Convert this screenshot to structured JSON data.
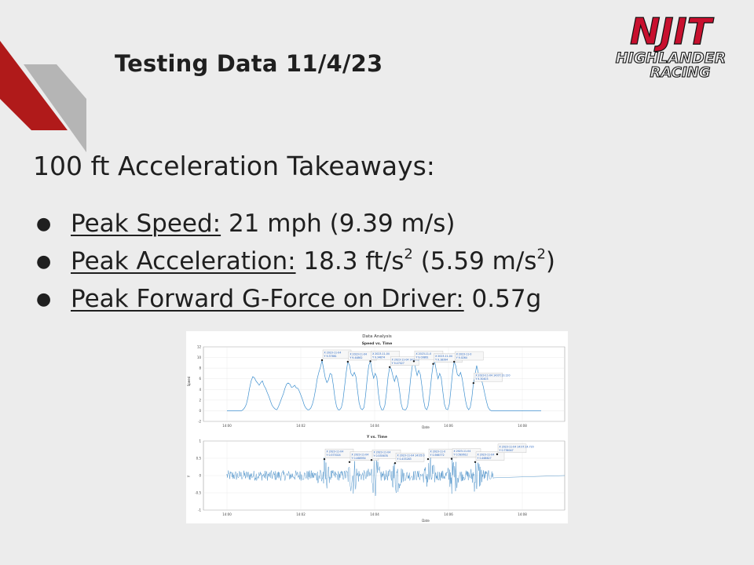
{
  "slide": {
    "title": "Testing Data 11/4/23",
    "heading": "100 ft Acceleration Takeaways:",
    "bullets": [
      {
        "key": "Peak Speed:",
        "value": " 21 mph (9.39 m/s)"
      },
      {
        "key": "Peak Acceleration:",
        "value_pre": " 18.3 ft/s",
        "sup1": "2",
        "value_mid": " (5.59 m/s",
        "sup2": "2",
        "value_post": ")"
      },
      {
        "key": "Peak Forward G-Force on Driver:",
        "value": " 0.57g"
      }
    ]
  },
  "logo": {
    "line1": "NJIT",
    "line2": "HIGHLANDER",
    "line3": "RACING",
    "color": "#c8102e"
  },
  "colors": {
    "background": "#ececec",
    "accent_red": "#b01a1a",
    "accent_grey": "#b5b5b5",
    "plot_line": "#3f90cf"
  },
  "chart_data": [
    {
      "type": "line",
      "suptitle": "Data Analysis",
      "title": "Speed vs. Time",
      "xlabel": "Date",
      "ylabel": "Speed",
      "ylim": [
        -2,
        12
      ],
      "yticks": [
        "-2",
        "0",
        "2",
        "4",
        "6",
        "8",
        "10",
        "12"
      ],
      "xticks": [
        "14:00",
        "14:02",
        "14:04",
        "14:06",
        "14:08"
      ],
      "grid": true,
      "series": [
        {
          "values": [
            0,
            0,
            0,
            0,
            0,
            0,
            0,
            0,
            0,
            0,
            0.2,
            0.6,
            1.2,
            2.5,
            4.2,
            5.6,
            6.4,
            6.2,
            5.6,
            5.2,
            4.8,
            5.3,
            5.6,
            4.7,
            4.2,
            3.4,
            2.7,
            1.8,
            1.0,
            0.6,
            0.3,
            0.2,
            0.8,
            1.6,
            2.4,
            3.2,
            4.2,
            5.0,
            5.2,
            5.0,
            4.4,
            4.5,
            4.8,
            4.3,
            4.2,
            3.6,
            2.8,
            2.0,
            1.0,
            0.5,
            0.2,
            0.2,
            0.5,
            1.2,
            2.4,
            4.0,
            6.0,
            7.2,
            8.2,
            9.5,
            7.8,
            6.2,
            5.3,
            5.8,
            7.0,
            6.8,
            4.8,
            2.4,
            0.8,
            0.2,
            0.2,
            0.6,
            2.0,
            4.5,
            7.2,
            9.2,
            8.6,
            7.0,
            6.5,
            7.2,
            6.4,
            3.8,
            1.5,
            0.4,
            0.2,
            0.6,
            2.8,
            6.0,
            8.5,
            9.3,
            7.5,
            6.1,
            7.0,
            6.3,
            3.2,
            1.0,
            0.2,
            0.2,
            1.0,
            3.4,
            6.4,
            8.2,
            7.8,
            6.5,
            5.5,
            6.6,
            5.9,
            4.0,
            1.5,
            0.3,
            0.2,
            0.2,
            0.8,
            3.0,
            6.0,
            8.4,
            9.3,
            8.0,
            6.6,
            7.6,
            6.8,
            4.6,
            2.0,
            0.5,
            0.2,
            1.0,
            3.5,
            6.5,
            8.8,
            9.1,
            7.4,
            6.0,
            7.0,
            6.2,
            3.5,
            1.2,
            0.3,
            0.2,
            1.2,
            4.0,
            7.2,
            9.2,
            8.4,
            6.8,
            6.5,
            7.2,
            6.0,
            4.0,
            2.0,
            0.7,
            0.2,
            0.6,
            2.5,
            5.2,
            6.8,
            8.5,
            7.1,
            6.4,
            5.8,
            4.6,
            3.2,
            1.8,
            0.7,
            0.2,
            0,
            0,
            0,
            0,
            0,
            0,
            0,
            0,
            0,
            0,
            0,
            0,
            0,
            0,
            0,
            0,
            0,
            0,
            0,
            0,
            0,
            0,
            0,
            0,
            0,
            0,
            0,
            0,
            0,
            0,
            0,
            0
          ]
        }
      ],
      "annotations": [
        {
          "x": "2023-11-04",
          "y": "9.37661"
        },
        {
          "x": "2023-11-04",
          "y": "9.44862"
        },
        {
          "x": "2023-11-04",
          "y": "9.34874"
        },
        {
          "x": "2023-11-04 14:05:0",
          "y": "9.47027"
        },
        {
          "x": "2023-11-0",
          "y": "9.03861"
        },
        {
          "x": "2023-11-04",
          "y": "9.18394"
        },
        {
          "x": "2023-11-0",
          "y": "9.0264"
        },
        {
          "x": "2023-11-04 14:07:13.120",
          "y": "9.30403"
        }
      ]
    },
    {
      "type": "line",
      "title": "Y vs. Time",
      "xlabel": "Date",
      "ylabel": "Y",
      "ylim": [
        -1.2,
        1.2
      ],
      "yticks": [
        "-1",
        "-0.5",
        "0",
        "0.5",
        "1"
      ],
      "xticks": [
        "14:00",
        "14:02",
        "14:04",
        "14:06",
        "14:08"
      ],
      "grid": true,
      "annotations": [
        {
          "x": "2023-11-04",
          "y": "0.573024"
        },
        {
          "x": "2023-11-04",
          "y": "0.468954"
        },
        {
          "x": "2023-11-04",
          "y": "0.535678"
        },
        {
          "x": "2023-11-04 14:05:0",
          "y": "0.433283"
        },
        {
          "x": "2023-11-0",
          "y": "0.566772"
        },
        {
          "x": "2023-11-04",
          "y": "0.583612"
        },
        {
          "x": "2023-11-04",
          "y": "0.468627"
        },
        {
          "x": "2023-11-04 14:07:14.720",
          "y": "0.736047"
        }
      ]
    }
  ]
}
